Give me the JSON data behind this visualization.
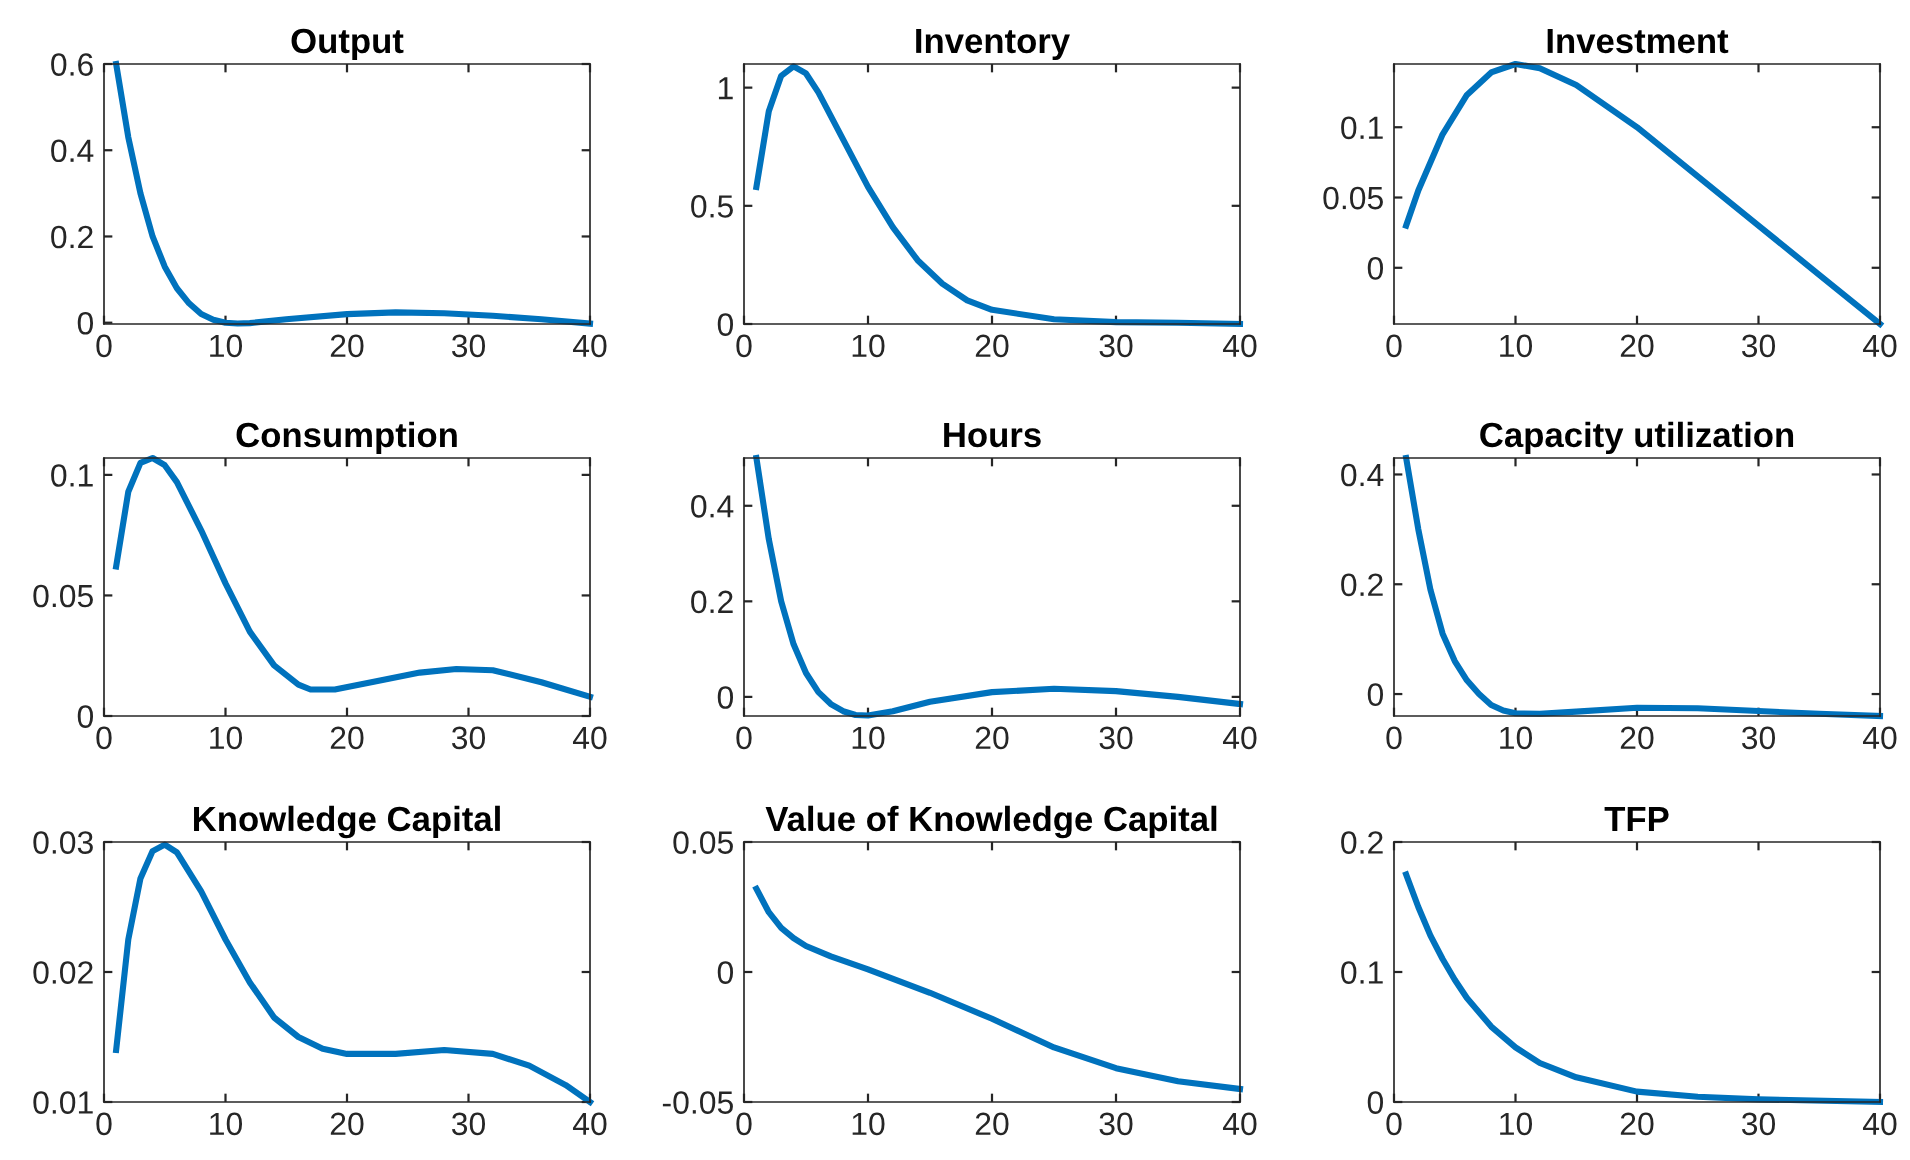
{
  "chart_data": [
    {
      "type": "line",
      "title": "Output",
      "x": [
        1,
        2,
        3,
        4,
        5,
        6,
        7,
        8,
        9,
        10,
        11,
        12,
        15,
        20,
        24,
        28,
        32,
        36,
        40
      ],
      "series": [
        {
          "color": "#0072bd",
          "values": [
            0.6,
            0.43,
            0.3,
            0.2,
            0.13,
            0.08,
            0.045,
            0.02,
            0.007,
            0.0,
            -0.002,
            -0.001,
            0.008,
            0.02,
            0.024,
            0.022,
            0.016,
            0.008,
            -0.002
          ]
        }
      ],
      "xlim": [
        0,
        40
      ],
      "xticks": [
        0,
        10,
        20,
        30,
        40
      ],
      "ylim": [
        -0.003,
        0.6
      ],
      "yticks": [
        0,
        0.2,
        0.4,
        0.6
      ],
      "grid": false,
      "line_style": "solid"
    },
    {
      "type": "line",
      "title": "Inventory",
      "x": [
        1,
        2,
        3,
        4,
        5,
        6,
        8,
        10,
        12,
        14,
        16,
        18,
        20,
        25,
        30,
        35,
        40
      ],
      "series": [
        {
          "color": "#0072bd",
          "values": [
            0.58,
            0.9,
            1.05,
            1.09,
            1.06,
            0.98,
            0.78,
            0.58,
            0.41,
            0.27,
            0.17,
            0.1,
            0.06,
            0.02,
            0.008,
            0.005,
            0.0
          ]
        }
      ],
      "xlim": [
        0,
        40
      ],
      "xticks": [
        0,
        10,
        20,
        30,
        40
      ],
      "ylim": [
        0,
        1.1
      ],
      "yticks": [
        0,
        0.5,
        1
      ],
      "grid": false,
      "line_style": "solid"
    },
    {
      "type": "line",
      "title": "Investment",
      "x": [
        1,
        2,
        4,
        6,
        8,
        10,
        12,
        15,
        20,
        25,
        30,
        35,
        40
      ],
      "series": [
        {
          "color": "#0072bd",
          "values": [
            0.03,
            0.055,
            0.095,
            0.123,
            0.139,
            0.145,
            0.142,
            0.13,
            0.1,
            0.065,
            0.03,
            -0.005,
            -0.04
          ]
        }
      ],
      "xlim": [
        0,
        40
      ],
      "xticks": [
        0,
        10,
        20,
        30,
        40
      ],
      "ylim": [
        -0.04,
        0.145
      ],
      "yticks": [
        0,
        0.05,
        0.1
      ],
      "grid": false,
      "line_style": "solid"
    },
    {
      "type": "line",
      "title": "Consumption",
      "x": [
        1,
        2,
        3,
        4,
        5,
        6,
        8,
        10,
        12,
        14,
        16,
        17,
        19,
        22,
        26,
        29,
        32,
        36,
        40
      ],
      "series": [
        {
          "color": "#0072bd",
          "values": [
            0.062,
            0.093,
            0.105,
            0.107,
            0.104,
            0.097,
            0.077,
            0.055,
            0.035,
            0.021,
            0.013,
            0.011,
            0.011,
            0.014,
            0.018,
            0.0195,
            0.019,
            0.014,
            0.008
          ]
        }
      ],
      "xlim": [
        0,
        40
      ],
      "xticks": [
        0,
        10,
        20,
        30,
        40
      ],
      "ylim": [
        0,
        0.107
      ],
      "yticks": [
        0,
        0.05,
        0.1
      ],
      "grid": false,
      "line_style": "solid"
    },
    {
      "type": "line",
      "title": "Hours",
      "x": [
        1,
        2,
        3,
        4,
        5,
        6,
        7,
        8,
        9,
        10,
        12,
        15,
        20,
        25,
        30,
        35,
        40
      ],
      "series": [
        {
          "color": "#0072bd",
          "values": [
            0.5,
            0.33,
            0.2,
            0.11,
            0.05,
            0.01,
            -0.015,
            -0.03,
            -0.038,
            -0.039,
            -0.03,
            -0.01,
            0.01,
            0.017,
            0.012,
            0.0,
            -0.015
          ]
        }
      ],
      "xlim": [
        0,
        40
      ],
      "xticks": [
        0,
        10,
        20,
        30,
        40
      ],
      "ylim": [
        -0.04,
        0.5
      ],
      "yticks": [
        0,
        0.2,
        0.4
      ],
      "grid": false,
      "line_style": "solid"
    },
    {
      "type": "line",
      "title": "Capacity utilization",
      "x": [
        1,
        2,
        3,
        4,
        5,
        6,
        7,
        8,
        9,
        10,
        12,
        15,
        20,
        25,
        30,
        35,
        40
      ],
      "series": [
        {
          "color": "#0072bd",
          "values": [
            0.43,
            0.3,
            0.19,
            0.11,
            0.06,
            0.025,
            0.0,
            -0.02,
            -0.03,
            -0.035,
            -0.036,
            -0.032,
            -0.025,
            -0.026,
            -0.031,
            -0.036,
            -0.04
          ]
        }
      ],
      "xlim": [
        0,
        40
      ],
      "xticks": [
        0,
        10,
        20,
        30,
        40
      ],
      "ylim": [
        -0.04,
        0.43
      ],
      "yticks": [
        0,
        0.2,
        0.4
      ],
      "grid": false,
      "line_style": "solid"
    },
    {
      "type": "line",
      "title": "Knowledge Capital",
      "x": [
        1,
        2,
        3,
        4,
        5,
        6,
        8,
        10,
        12,
        14,
        16,
        18,
        20,
        24,
        28,
        32,
        35,
        38,
        40
      ],
      "series": [
        {
          "color": "#0072bd",
          "values": [
            0.014,
            0.0225,
            0.0272,
            0.0293,
            0.0298,
            0.0292,
            0.0262,
            0.0225,
            0.0192,
            0.0165,
            0.015,
            0.0141,
            0.0137,
            0.0137,
            0.014,
            0.0137,
            0.0128,
            0.0113,
            0.01
          ]
        }
      ],
      "xlim": [
        0,
        40
      ],
      "xticks": [
        0,
        10,
        20,
        30,
        40
      ],
      "ylim": [
        0.01,
        0.03
      ],
      "yticks": [
        0.01,
        0.02,
        0.03
      ],
      "grid": false,
      "line_style": "solid"
    },
    {
      "type": "line",
      "title": "Value of Knowledge Capital",
      "x": [
        1,
        2,
        3,
        4,
        5,
        7,
        10,
        15,
        20,
        25,
        30,
        35,
        40
      ],
      "series": [
        {
          "color": "#0072bd",
          "values": [
            0.032,
            0.023,
            0.017,
            0.013,
            0.01,
            0.006,
            0.001,
            -0.008,
            -0.018,
            -0.029,
            -0.037,
            -0.042,
            -0.045
          ]
        }
      ],
      "xlim": [
        0,
        40
      ],
      "xticks": [
        0,
        10,
        20,
        30,
        40
      ],
      "ylim": [
        -0.05,
        0.05
      ],
      "yticks": [
        -0.05,
        0,
        0.05
      ],
      "grid": false,
      "line_style": "solid"
    },
    {
      "type": "line",
      "title": "TFP",
      "x": [
        1,
        2,
        3,
        4,
        5,
        6,
        8,
        10,
        12,
        15,
        20,
        25,
        30,
        40
      ],
      "series": [
        {
          "color": "#0072bd",
          "values": [
            0.175,
            0.15,
            0.128,
            0.11,
            0.094,
            0.08,
            0.058,
            0.042,
            0.03,
            0.019,
            0.008,
            0.004,
            0.002,
            0.0
          ]
        }
      ],
      "xlim": [
        0,
        40
      ],
      "xticks": [
        0,
        10,
        20,
        30,
        40
      ],
      "ylim": [
        0,
        0.2
      ],
      "yticks": [
        0,
        0.1,
        0.2
      ],
      "grid": false,
      "line_style": "solid"
    }
  ]
}
